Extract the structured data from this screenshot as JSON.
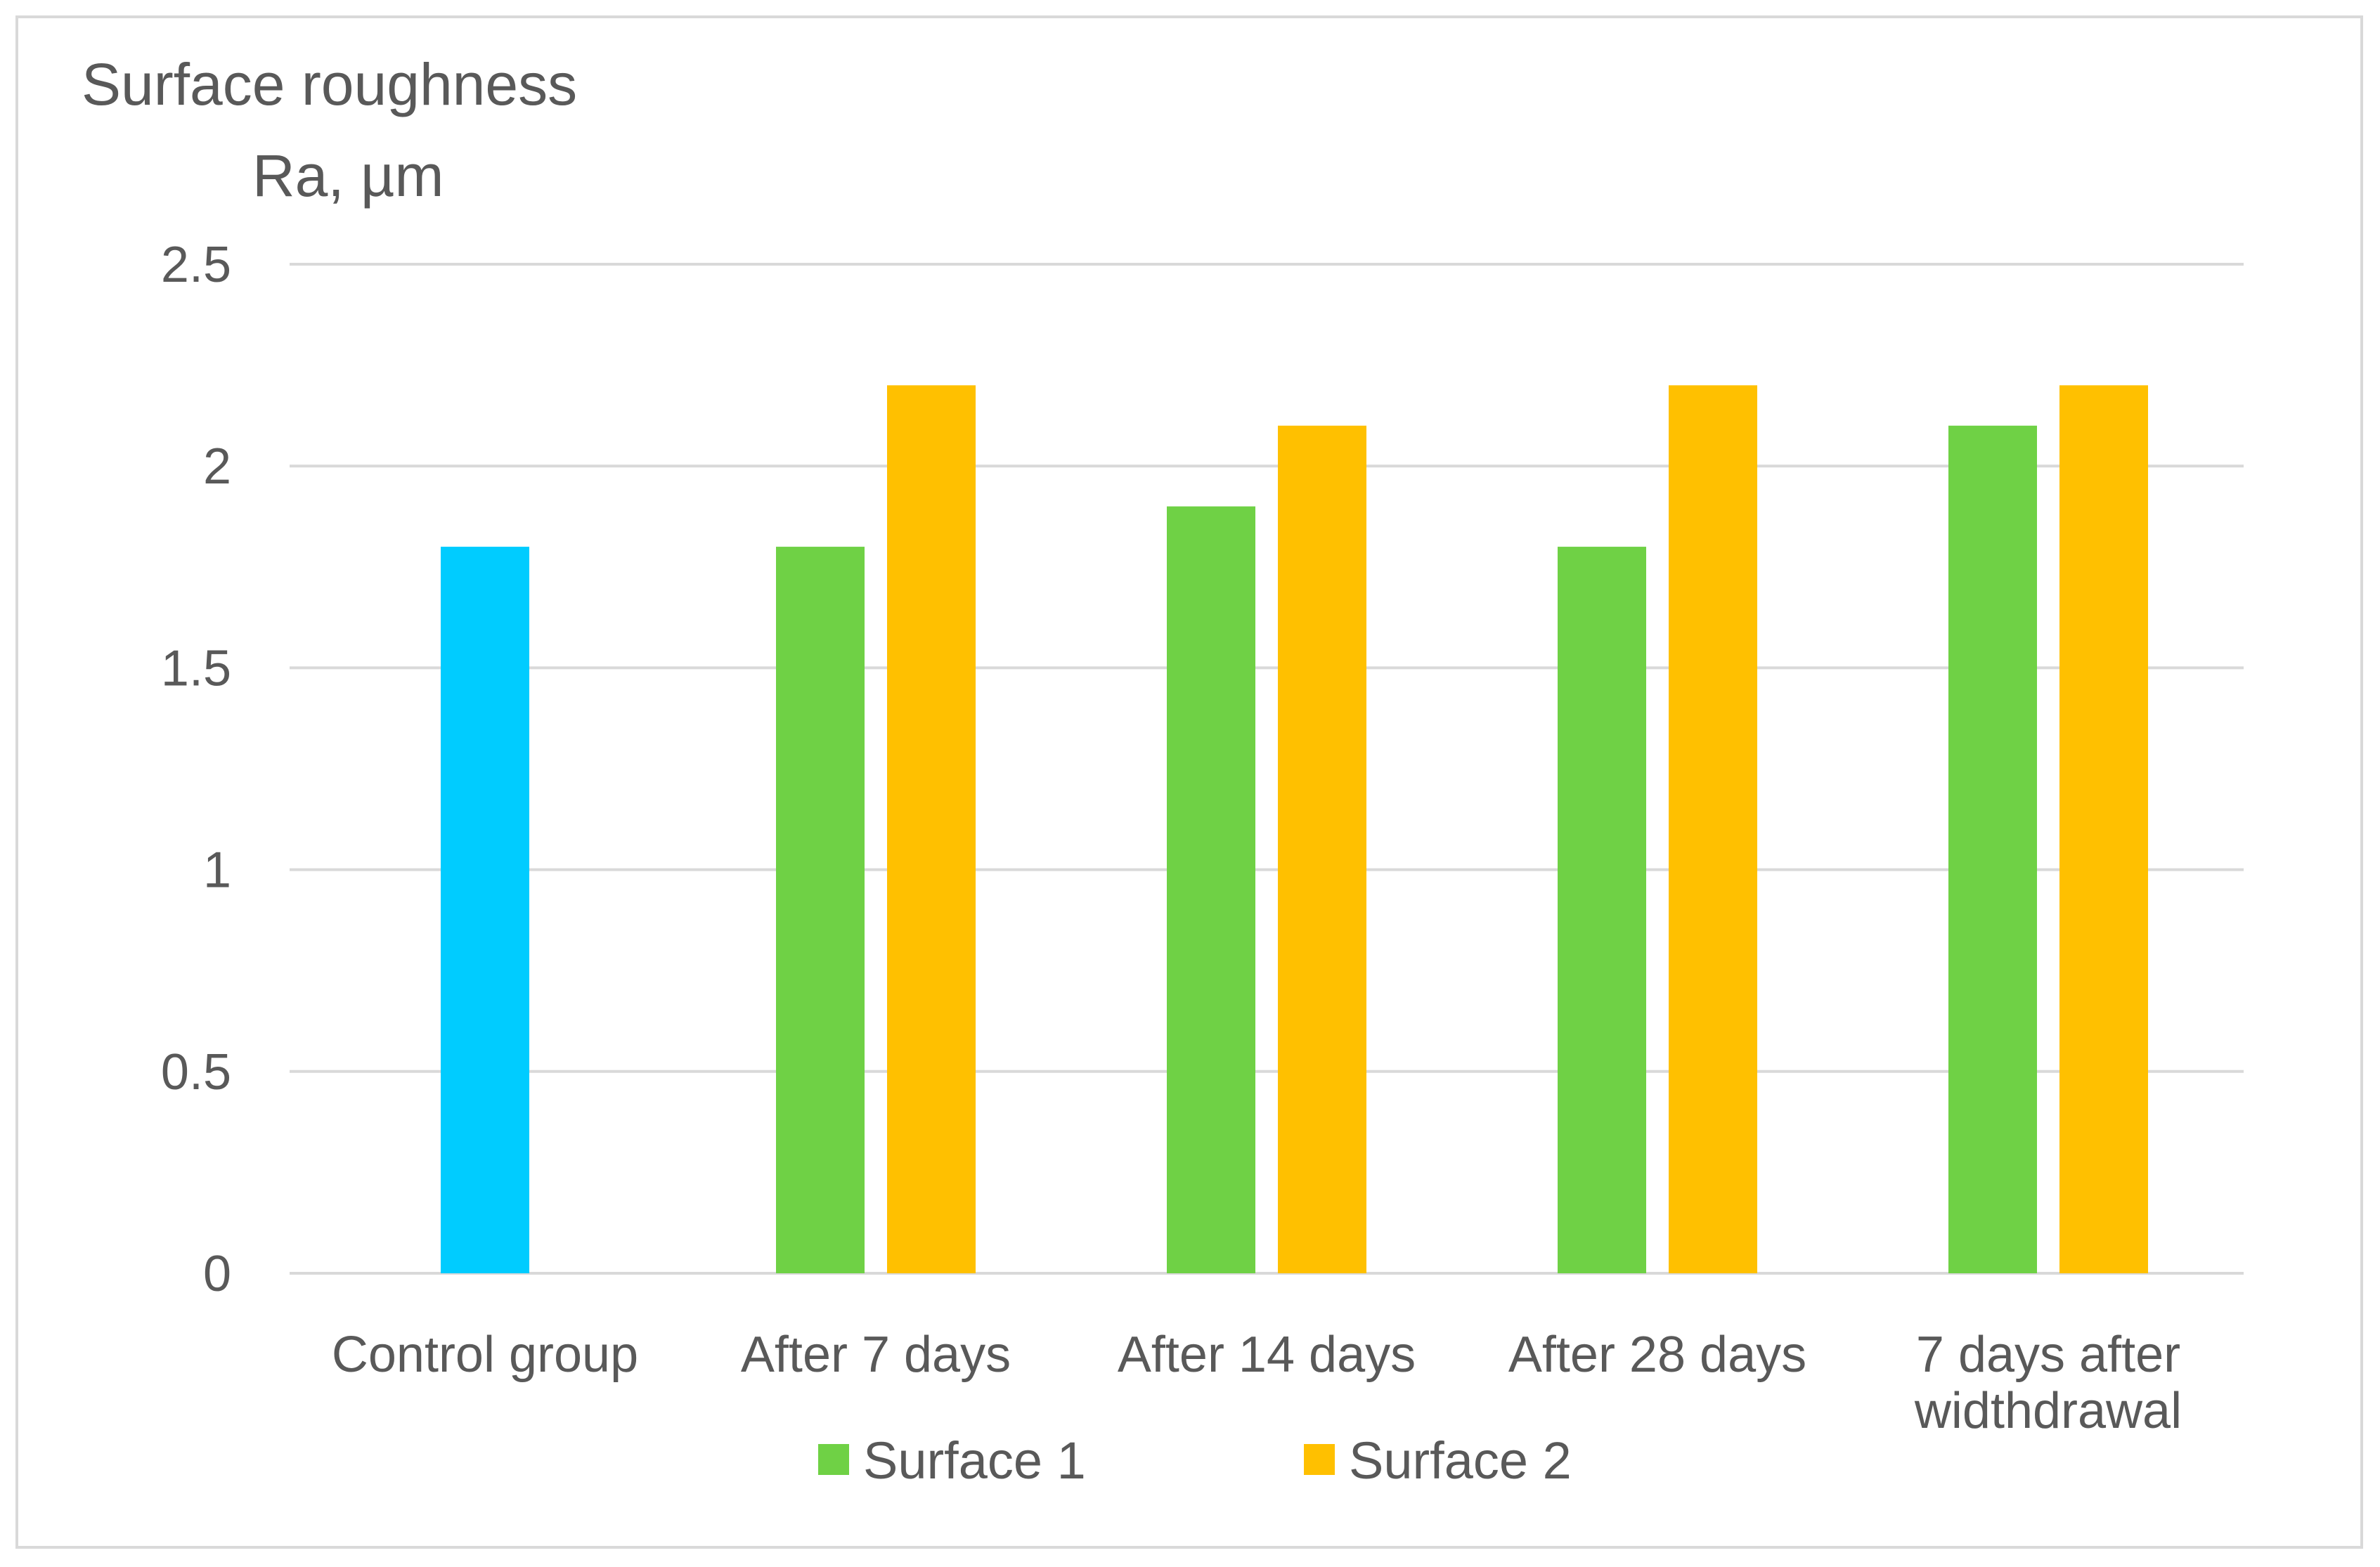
{
  "chart_data": {
    "type": "bar",
    "title": "",
    "ylabel_lines": [
      "Surface roughness",
      "Ra, µm"
    ],
    "xlabel": "",
    "ylim": [
      0,
      2.5
    ],
    "yticks": [
      0,
      0.5,
      1,
      1.5,
      2,
      2.5
    ],
    "ytick_labels": [
      "0",
      "0.5",
      "1",
      "1.5",
      "2",
      "2.5"
    ],
    "grid": true,
    "categories": [
      [
        "Control group"
      ],
      [
        "After 7 days"
      ],
      [
        "After 14 days"
      ],
      [
        "After 28 days"
      ],
      [
        "7 days after",
        "widthdrawal"
      ]
    ],
    "control": {
      "value": 1.8,
      "color": "#00CCFF"
    },
    "series": [
      {
        "name": "Surface 1",
        "color": "#6FD145",
        "values": [
          null,
          1.8,
          1.9,
          1.8,
          2.1
        ]
      },
      {
        "name": "Surface 2",
        "color": "#FFC000",
        "values": [
          null,
          2.2,
          2.1,
          2.2,
          2.2
        ]
      }
    ],
    "legend_position": "bottom"
  },
  "colors": {
    "grid": "#d9d9d9",
    "text": "#595959",
    "border": "#d9d9d9"
  }
}
